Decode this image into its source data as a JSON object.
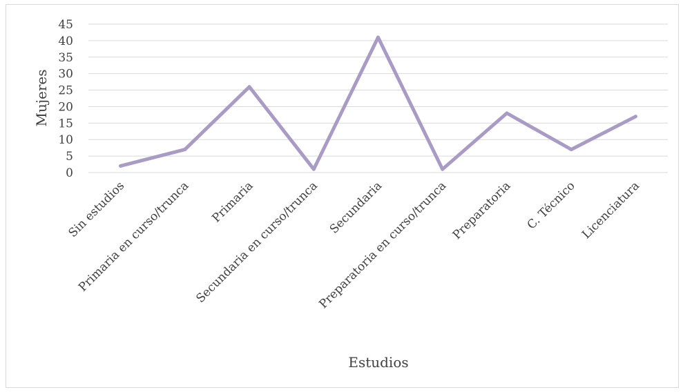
{
  "chart_data": {
    "type": "line",
    "title": "",
    "xlabel": "Estudios",
    "ylabel": "Mujeres",
    "categories": [
      "Sin estudios",
      "Primaria en curso/trunca",
      "Primaria",
      "Secundaria en curso/trunca",
      "Secundaria",
      "Preparatoria en curso/trunca",
      "Preparatoria",
      "C. Técnico",
      "Licenciatura"
    ],
    "series": [
      {
        "values": [
          2,
          7,
          26,
          1,
          41,
          1,
          18,
          7,
          17
        ],
        "color": "#a99bc6"
      }
    ],
    "ylim": [
      0,
      45
    ],
    "yticks": [
      0,
      5,
      10,
      15,
      20,
      25,
      30,
      35,
      40,
      45
    ],
    "grid": true,
    "legend": "none"
  }
}
